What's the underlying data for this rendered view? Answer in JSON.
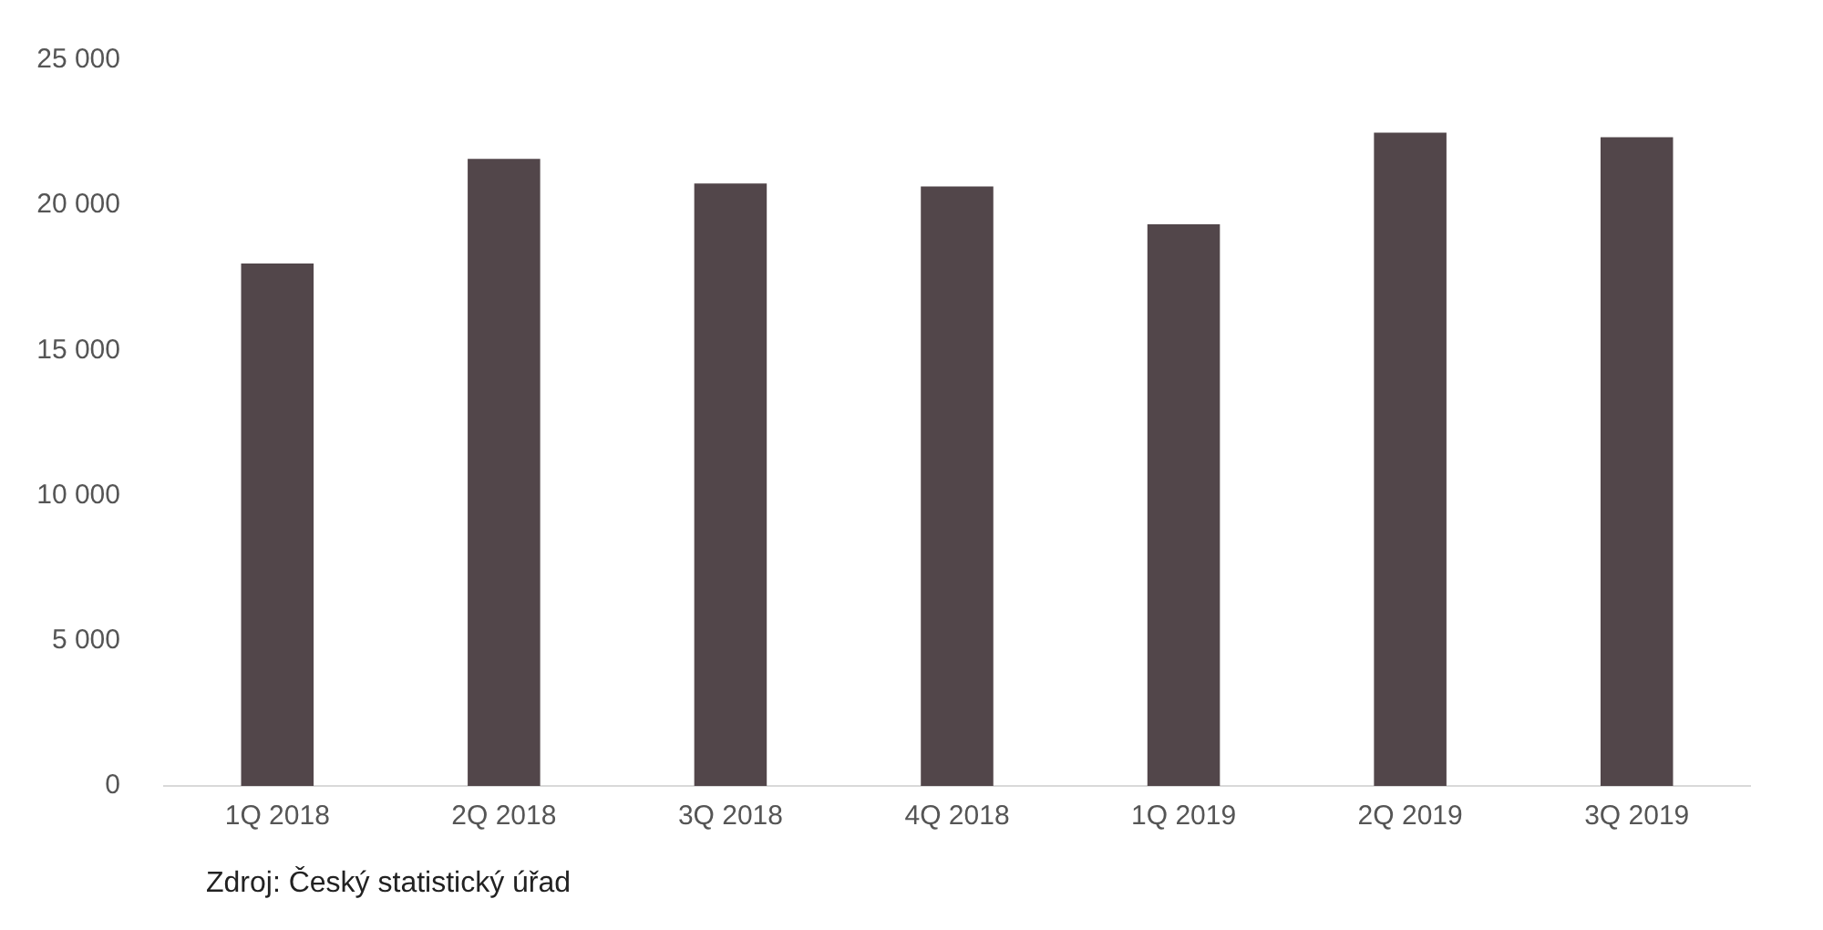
{
  "chart_data": {
    "type": "bar",
    "categories": [
      "1Q 2018",
      "2Q 2018",
      "3Q 2018",
      "4Q 2018",
      "1Q 2019",
      "2Q 2019",
      "3Q 2019"
    ],
    "values": [
      18000,
      21600,
      20750,
      20650,
      19350,
      22500,
      22350
    ],
    "color": "#52464a",
    "ylim": [
      0,
      25000
    ],
    "yticks": [
      {
        "value": 0,
        "label": "0"
      },
      {
        "value": 5000,
        "label": "5 000"
      },
      {
        "value": 10000,
        "label": "10 000"
      },
      {
        "value": 15000,
        "label": "15 000"
      },
      {
        "value": 20000,
        "label": "20 000"
      },
      {
        "value": 25000,
        "label": "25 000"
      }
    ],
    "grid": false,
    "legend": false,
    "annotations": [
      "Zdroj: Český statistický úřad"
    ]
  }
}
